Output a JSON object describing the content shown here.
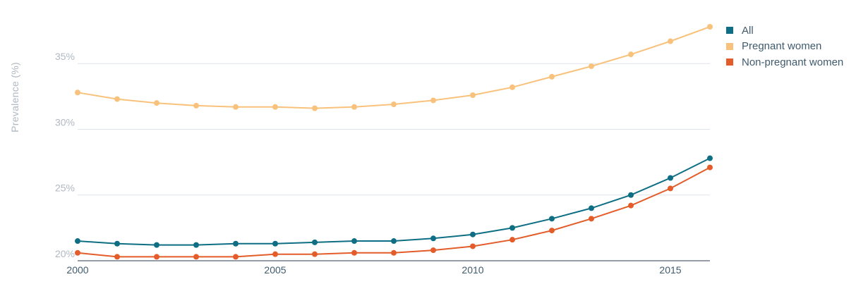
{
  "chart_data": {
    "type": "line",
    "ylabel": "Prevalence (%)",
    "x": [
      2000,
      2001,
      2002,
      2003,
      2004,
      2005,
      2006,
      2007,
      2008,
      2009,
      2010,
      2011,
      2012,
      2013,
      2014,
      2015,
      2016
    ],
    "xticks": [
      "2000",
      "2005",
      "2010",
      "2015"
    ],
    "yticks": [
      "20%",
      "25%",
      "30%",
      "35%"
    ],
    "ylim": [
      20,
      37.8
    ],
    "xlim": [
      2000,
      2016
    ],
    "grid": true,
    "legend_position": "right",
    "series": [
      {
        "name": "All",
        "color": "#0e6e84",
        "values": [
          21.5,
          21.3,
          21.2,
          21.2,
          21.3,
          21.3,
          21.4,
          21.5,
          21.5,
          21.7,
          22.0,
          22.5,
          23.2,
          24.0,
          25.0,
          26.3,
          27.8
        ]
      },
      {
        "name": "Pregnant women",
        "color": "#f9c27c",
        "values": [
          32.8,
          32.3,
          32.0,
          31.8,
          31.7,
          31.7,
          31.6,
          31.7,
          31.9,
          32.2,
          32.6,
          33.2,
          34.0,
          34.8,
          35.7,
          36.7,
          37.8
        ]
      },
      {
        "name": "Non-pregnant women",
        "color": "#e35c2a",
        "values": [
          20.6,
          20.3,
          20.3,
          20.3,
          20.3,
          20.5,
          20.5,
          20.6,
          20.6,
          20.8,
          21.1,
          21.6,
          22.3,
          23.2,
          24.2,
          25.5,
          27.1
        ]
      }
    ]
  }
}
